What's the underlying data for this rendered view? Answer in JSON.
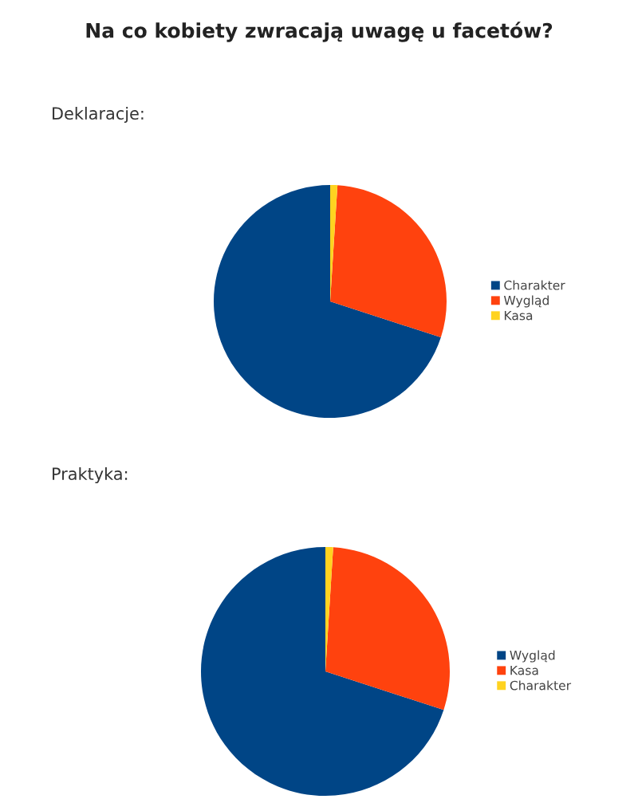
{
  "chart_data": [
    {
      "type": "pie",
      "title": "Na co kobiety zwracają uwagę u facetów?",
      "subtitle": "Deklaracje:",
      "categories": [
        "Charakter",
        "Wygląd",
        "Kasa"
      ],
      "values": [
        70,
        29,
        1
      ],
      "colors": [
        "#004586",
        "#ff420e",
        "#ffd320"
      ],
      "legend": "right"
    },
    {
      "type": "pie",
      "title": "Praktyka:",
      "categories": [
        "Wygląd",
        "Kasa",
        "Charakter"
      ],
      "values": [
        70,
        29,
        1
      ],
      "colors": [
        "#004586",
        "#ff420e",
        "#ffd320"
      ],
      "legend": "right"
    }
  ]
}
